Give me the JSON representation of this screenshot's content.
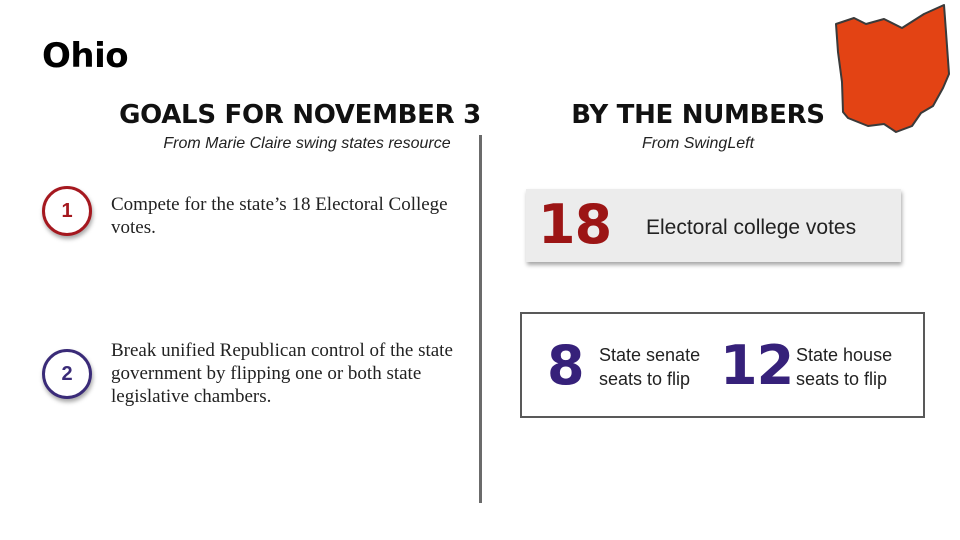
{
  "page": {
    "title": "Ohio"
  },
  "colors": {
    "map_fill": "#e34314",
    "map_stroke": "#3a3a3a",
    "goal1": "#a5181f",
    "goal2": "#3a2b78",
    "electoral_number": "#9c1515",
    "legislature_numbers": "#36217a"
  },
  "goals": {
    "heading": "GOALS FOR NOVEMBER 3",
    "source": "From Marie Claire swing states resource",
    "items": [
      {
        "number": "1",
        "text": "Compete for the state’s 18 Electoral College votes."
      },
      {
        "number": "2",
        "text": "Break unified Republican control of the state government by flipping one or both state legislative chambers."
      }
    ]
  },
  "numbers": {
    "heading": "BY THE NUMBERS",
    "source": "From SwingLeft",
    "electoral": {
      "value": "18",
      "label": "Electoral college votes"
    },
    "senate": {
      "value": "8",
      "label": "State senate seats to flip"
    },
    "house": {
      "value": "12",
      "label": "State house seats to flip"
    }
  }
}
